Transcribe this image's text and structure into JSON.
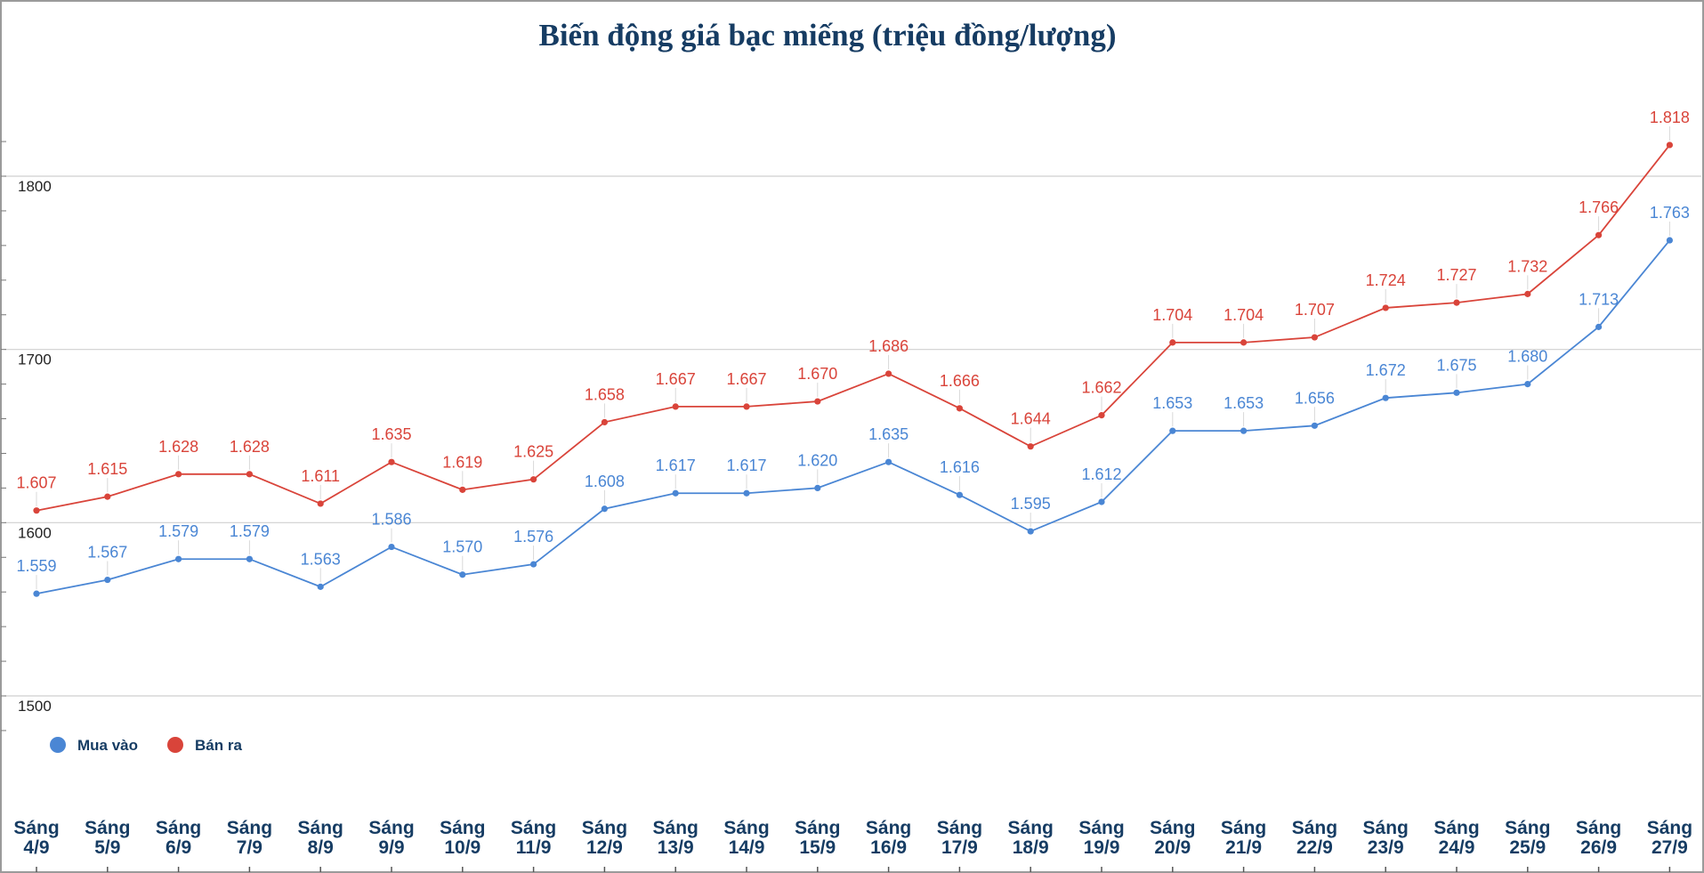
{
  "chart_data": {
    "type": "line",
    "title": "Biến động giá bạc miếng (triệu đồng/lượng)",
    "xlabel": "",
    "ylabel": "",
    "ylim": [
      1470,
      1830
    ],
    "yticks": [
      1500,
      1600,
      1700,
      1800
    ],
    "grid": true,
    "legend_position": "bottom-left",
    "categories": [
      [
        "Sáng",
        "4/9"
      ],
      [
        "Sáng",
        "5/9"
      ],
      [
        "Sáng",
        "6/9"
      ],
      [
        "Sáng",
        "7/9"
      ],
      [
        "Sáng",
        "8/9"
      ],
      [
        "Sáng",
        "9/9"
      ],
      [
        "Sáng",
        "10/9"
      ],
      [
        "Sáng",
        "11/9"
      ],
      [
        "Sáng",
        "12/9"
      ],
      [
        "Sáng",
        "13/9"
      ],
      [
        "Sáng",
        "14/9"
      ],
      [
        "Sáng",
        "15/9"
      ],
      [
        "Sáng",
        "16/9"
      ],
      [
        "Sáng",
        "17/9"
      ],
      [
        "Sáng",
        "18/9"
      ],
      [
        "Sáng",
        "19/9"
      ],
      [
        "Sáng",
        "20/9"
      ],
      [
        "Sáng",
        "21/9"
      ],
      [
        "Sáng",
        "22/9"
      ],
      [
        "Sáng",
        "23/9"
      ],
      [
        "Sáng",
        "24/9"
      ],
      [
        "Sáng",
        "25/9"
      ],
      [
        "Sáng",
        "26/9"
      ],
      [
        "Sáng",
        "27/9"
      ]
    ],
    "series": [
      {
        "name": "Mua vào",
        "color": "#4a86d4",
        "values": [
          1559,
          1567,
          1579,
          1579,
          1563,
          1586,
          1570,
          1576,
          1608,
          1617,
          1617,
          1620,
          1635,
          1616,
          1595,
          1612,
          1653,
          1653,
          1656,
          1672,
          1675,
          1680,
          1713,
          1763
        ],
        "labels": [
          "1.559",
          "1.567",
          "1.579",
          "1.579",
          "1.563",
          "1.586",
          "1.570",
          "1.576",
          "1.608",
          "1.617",
          "1.617",
          "1.620",
          "1.635",
          "1.616",
          "1.595",
          "1.612",
          "1.653",
          "1.653",
          "1.656",
          "1.672",
          "1.675",
          "1.680",
          "1.713",
          "1.763"
        ]
      },
      {
        "name": "Bán ra",
        "color": "#d9443a",
        "values": [
          1607,
          1615,
          1628,
          1628,
          1611,
          1635,
          1619,
          1625,
          1658,
          1667,
          1667,
          1670,
          1686,
          1666,
          1644,
          1662,
          1704,
          1704,
          1707,
          1724,
          1727,
          1732,
          1766,
          1818
        ],
        "labels": [
          "1.607",
          "1.615",
          "1.628",
          "1.628",
          "1.611",
          "1.635",
          "1.619",
          "1.625",
          "1.658",
          "1.667",
          "1.667",
          "1.670",
          "1.686",
          "1.666",
          "1.644",
          "1.662",
          "1.704",
          "1.704",
          "1.707",
          "1.724",
          "1.727",
          "1.732",
          "1.766",
          "1.818"
        ]
      }
    ]
  }
}
